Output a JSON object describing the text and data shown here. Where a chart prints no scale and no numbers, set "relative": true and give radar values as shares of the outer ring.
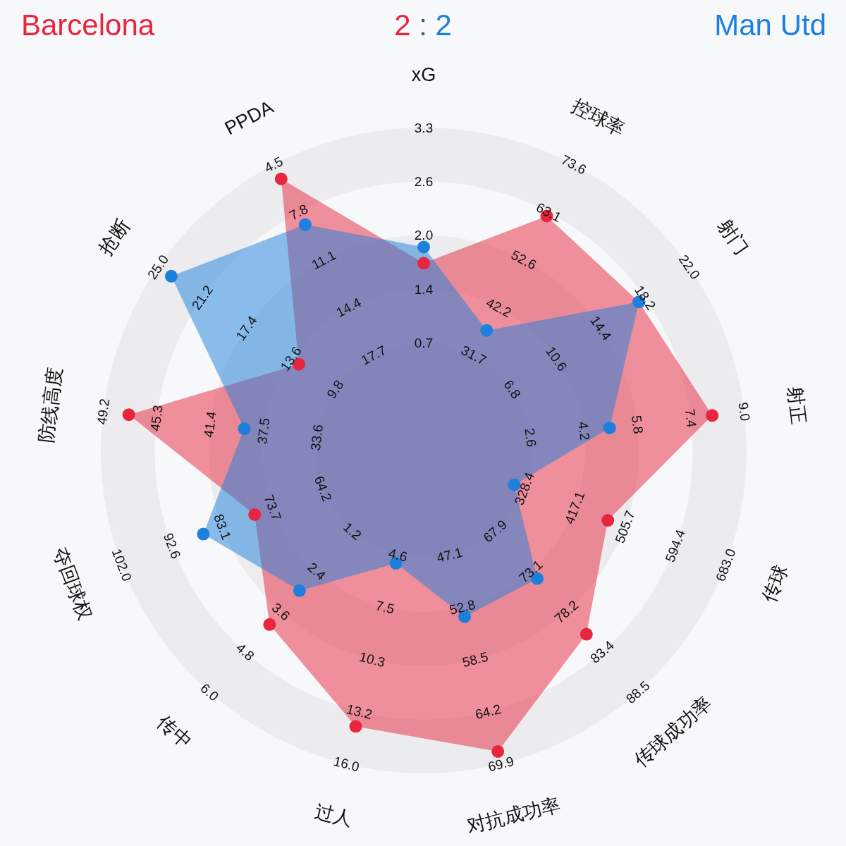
{
  "chart_data": {
    "type": "radar",
    "title": "2 : 2",
    "categories": [
      "xG",
      "控球率",
      "射门",
      "射正",
      "传球",
      "传球成功率",
      "对抗成功率",
      "过人",
      "传中",
      "夺回球权",
      "防线高度",
      "抢断",
      "PPDA"
    ],
    "relative": true,
    "grid": true,
    "legend": "top",
    "marker": "circle",
    "series": [
      {
        "name": "Barcelona",
        "color": "#e8253e",
        "values": [
          0.58,
          0.82,
          0.81,
          0.9,
          0.61,
          0.76,
          0.96,
          0.88,
          0.72,
          0.56,
          0.92,
          0.47,
          0.95
        ]
      },
      {
        "name": "Man Utd",
        "color": "#1c80dc",
        "values": [
          0.63,
          0.42,
          0.81,
          0.58,
          0.3,
          0.53,
          0.53,
          0.36,
          0.58,
          0.73,
          0.56,
          0.95,
          0.79
        ]
      }
    ],
    "annotations": [
      "0.7",
      "1.4",
      "2.0",
      "2.6",
      "3.3",
      "31.7",
      "42.2",
      "52.6",
      "63.1",
      "73.6",
      "6.8",
      "10.6",
      "14.4",
      "18.2",
      "22.0",
      "2.6",
      "4.2",
      "5.8",
      "7.4",
      "9.0",
      "328.4",
      "417.1",
      "505.7",
      "594.4",
      "683.0",
      "67.9",
      "73.1",
      "78.2",
      "83.4",
      "88.5",
      "47.1",
      "52.8",
      "58.5",
      "64.2",
      "69.9",
      "4.6",
      "7.5",
      "10.3",
      "13.2",
      "16.0",
      "1.2",
      "2.4",
      "3.6",
      "4.8",
      "6.0",
      "64.2",
      "73.7",
      "83.1",
      "92.6",
      "102.0",
      "33.6",
      "37.5",
      "41.4",
      "45.3",
      "49.2",
      "9.8",
      "13.6",
      "17.4",
      "21.2",
      "25.0",
      "17.7",
      "14.4",
      "11.1",
      "7.8",
      "4.5"
    ]
  }
}
